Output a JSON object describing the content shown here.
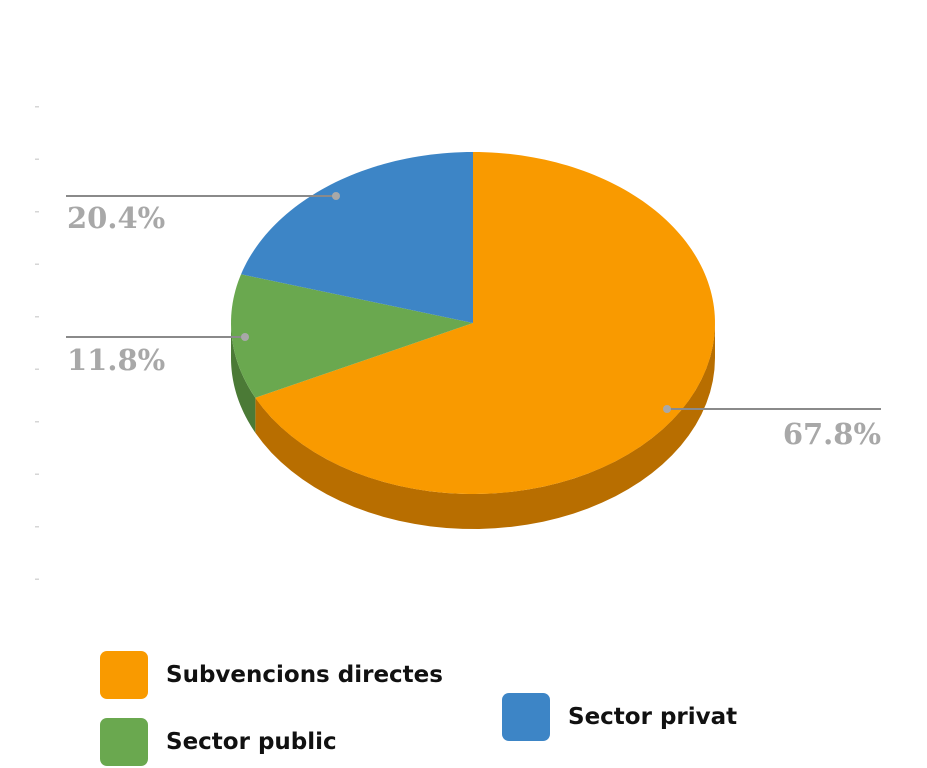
{
  "chart_data": {
    "type": "pie",
    "three_d": true,
    "categories": [
      "Subvencions directes",
      "Sector public",
      "Sector privat"
    ],
    "values": [
      67.8,
      11.8,
      20.4
    ],
    "data_labels": [
      "67.8%",
      "11.8%",
      "20.4%"
    ],
    "colors": [
      "#f99a00",
      "#6aa84f",
      "#3d85c6"
    ],
    "side_colors": [
      "#b86e00",
      "#4b7a36",
      "#2a5f8f"
    ],
    "legend_position": "bottom"
  }
}
